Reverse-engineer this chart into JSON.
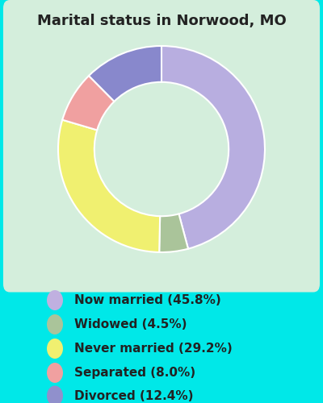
{
  "title": "Marital status in Norwood, MO",
  "slices": [
    45.8,
    4.5,
    29.2,
    8.0,
    12.4
  ],
  "labels": [
    "Now married (45.8%)",
    "Widowed (4.5%)",
    "Never married (29.2%)",
    "Separated (8.0%)",
    "Divorced (12.4%)"
  ],
  "slice_colors": [
    "#b8aee0",
    "#aac49a",
    "#f0f070",
    "#f0a0a0",
    "#8888cc"
  ],
  "legend_dot_colors": [
    "#c0b0e0",
    "#aac49a",
    "#f0f070",
    "#f0a0a0",
    "#9090cc"
  ],
  "bg_outer": "#00e8e8",
  "bg_chart": "#d4eedc",
  "title_color": "#222222",
  "legend_text_color": "#222222",
  "title_fontsize": 13,
  "legend_fontsize": 11,
  "start_angle": 90,
  "donut_width": 0.35
}
